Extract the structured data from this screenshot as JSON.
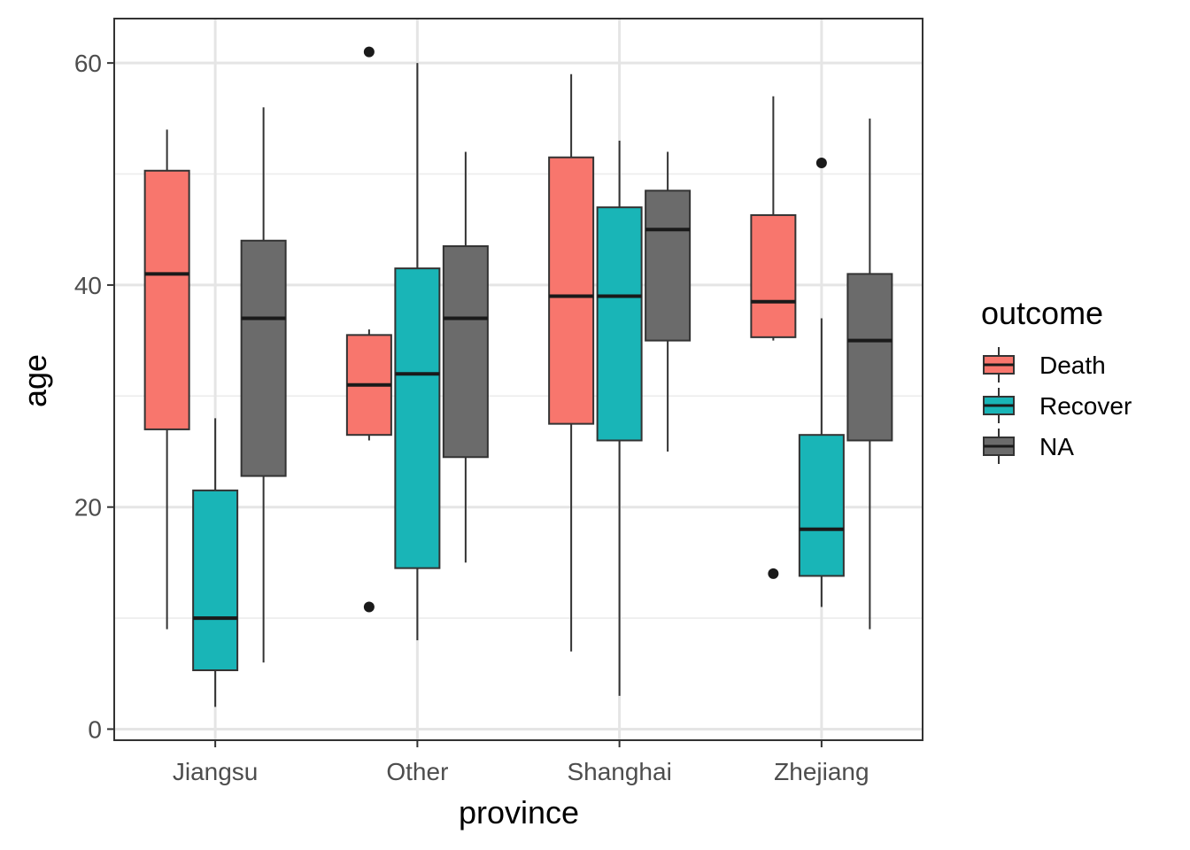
{
  "chart_data": {
    "type": "boxplot",
    "title": "",
    "xlabel": "province",
    "ylabel": "age",
    "ylim": [
      -1,
      64
    ],
    "yticks": [
      0,
      20,
      40,
      60
    ],
    "grid": true,
    "legend": {
      "title": "outcome",
      "placement": "right"
    },
    "categories": [
      "Jiangsu",
      "Other",
      "Shanghai",
      "Zhejiang"
    ],
    "series": [
      {
        "name": "Death",
        "color": "#F8766D",
        "boxes": [
          {
            "min": 9,
            "q1": 27,
            "median": 41,
            "q3": 50.3,
            "max": 54,
            "outliers": []
          },
          {
            "min": 26,
            "q1": 26.5,
            "median": 31,
            "q3": 35.5,
            "max": 36,
            "outliers": [
              11,
              61
            ]
          },
          {
            "min": 7,
            "q1": 27.5,
            "median": 39,
            "q3": 51.5,
            "max": 59,
            "outliers": []
          },
          {
            "min": 35,
            "q1": 35.3,
            "median": 38.5,
            "q3": 46.3,
            "max": 57,
            "outliers": [
              14
            ]
          }
        ]
      },
      {
        "name": "Recover",
        "color": "#19B5B7",
        "boxes": [
          {
            "min": 2,
            "q1": 5.3,
            "median": 10,
            "q3": 21.5,
            "max": 28,
            "outliers": []
          },
          {
            "min": 8,
            "q1": 14.5,
            "median": 32,
            "q3": 41.5,
            "max": 60,
            "outliers": []
          },
          {
            "min": 3,
            "q1": 26,
            "median": 39,
            "q3": 47,
            "max": 53,
            "outliers": []
          },
          {
            "min": 11,
            "q1": 13.8,
            "median": 18,
            "q3": 26.5,
            "max": 37,
            "outliers": [
              51
            ]
          }
        ]
      },
      {
        "name": "NA",
        "color": "#6B6B6B",
        "boxes": [
          {
            "min": 6,
            "q1": 22.8,
            "median": 37,
            "q3": 44,
            "max": 56,
            "outliers": []
          },
          {
            "min": 15,
            "q1": 24.5,
            "median": 37,
            "q3": 43.5,
            "max": 52,
            "outliers": []
          },
          {
            "min": 25,
            "q1": 35,
            "median": 45,
            "q3": 48.5,
            "max": 52,
            "outliers": []
          },
          {
            "min": 9,
            "q1": 26,
            "median": 35,
            "q3": 41,
            "max": 55,
            "outliers": []
          }
        ]
      }
    ]
  }
}
